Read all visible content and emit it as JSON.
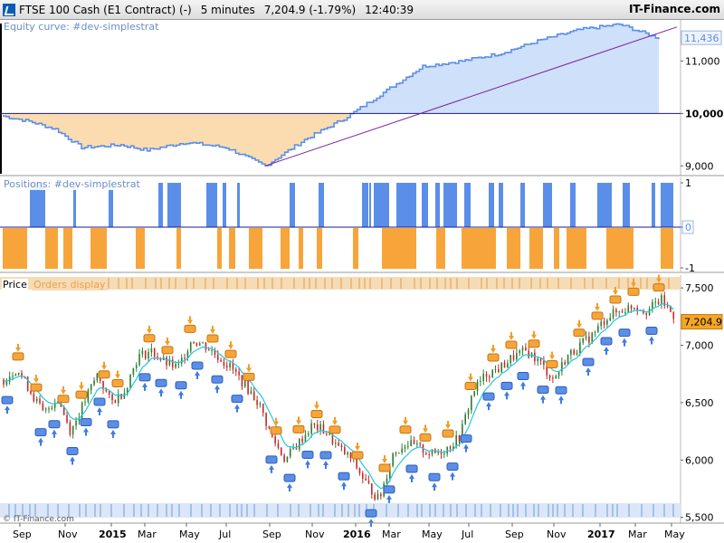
{
  "header": {
    "instrument": "FTSE 100 Cash (E1 Contract) (-)",
    "timeframe": "5 minutes",
    "price_change": "7,204.9 (-1.79%)",
    "time": "12:40:39",
    "brand": "IT-Finance.com"
  },
  "panes": {
    "equity_label": "Equity curve: #dev-simplestrat",
    "positions_label": "Positions: #dev-simplestrat",
    "price_label": "Price",
    "orders_label": "Orders display"
  },
  "footer": {
    "copyright": "© IT-Finance.com"
  },
  "colors": {
    "equity_up_fill": "#cfe0fa",
    "equity_down_fill": "#fbdcb0",
    "equity_line_up": "#5b8ee8",
    "equity_line_down": "#f2a33a",
    "trend_line": "#7b1fa2",
    "baseline": "#1a1a8a",
    "long_bar": "#5b8ee8",
    "short_bar": "#f7a53a",
    "candle_up": "#2e7d32",
    "candle_down": "#c62828",
    "ma_line": "#26c6da",
    "price_tag_bg": "#f5a623"
  },
  "chart_data": [
    {
      "type": "area",
      "title": "Equity curve: #dev-simplestrat",
      "y_ticks": [
        "9,000",
        "10,000",
        "11,000"
      ],
      "ylim": [
        8850,
        11750
      ],
      "baseline": 10000,
      "last_value": 11436,
      "last_value_label": "11,436",
      "x": [
        0,
        4,
        8,
        12,
        18,
        22,
        28,
        34,
        40,
        46,
        52,
        58,
        64,
        70,
        76,
        82,
        88,
        94,
        100
      ],
      "values": [
        9950,
        9850,
        9700,
        9350,
        9400,
        9300,
        9450,
        9350,
        9000,
        9500,
        9900,
        10400,
        10900,
        11000,
        11150,
        11400,
        11600,
        11700,
        11436
      ]
    },
    {
      "type": "bar",
      "title": "Positions: #dev-simplestrat",
      "y_ticks": [
        "1",
        "0",
        "-1"
      ],
      "ylim": [
        -1,
        1
      ]
    },
    {
      "type": "line",
      "title": "Price",
      "y_ticks": [
        "5,500",
        "6,000",
        "6,500",
        "7,000",
        "7,500"
      ],
      "ylim": [
        5450,
        7580
      ],
      "last_price": 7204.9,
      "last_price_label": "7,204.9",
      "x_ticks": [
        "Sep",
        "Nov",
        "2015",
        "Mar",
        "May",
        "Jul",
        "Sep",
        "Nov",
        "2016",
        "Mar",
        "May",
        "Jul",
        "Sep",
        "Nov",
        "2017",
        "Mar",
        "May"
      ],
      "x": [
        0,
        2,
        4,
        6,
        8,
        10,
        12,
        14,
        16,
        18,
        20,
        22,
        24,
        26,
        28,
        30,
        32,
        34,
        36,
        38,
        40,
        42,
        44,
        46,
        48,
        50,
        52,
        54,
        56,
        58,
        60,
        62,
        64,
        66,
        68,
        70,
        72,
        74,
        76,
        78,
        80,
        82,
        84,
        86,
        88,
        90,
        92,
        94,
        96,
        98,
        100
      ],
      "values": [
        6700,
        6800,
        6600,
        6400,
        6550,
        6250,
        6500,
        6750,
        6500,
        6600,
        6900,
        6950,
        6850,
        6800,
        7050,
        7000,
        6900,
        6800,
        6650,
        6500,
        6200,
        6000,
        6150,
        6300,
        6250,
        6100,
        6000,
        5800,
        5650,
        6050,
        6150,
        6100,
        6050,
        6100,
        6200,
        6600,
        6750,
        6800,
        6900,
        6950,
        6850,
        6700,
        6900,
        7000,
        7100,
        7250,
        7300,
        7350,
        7300,
        7400,
        7250
      ]
    }
  ]
}
